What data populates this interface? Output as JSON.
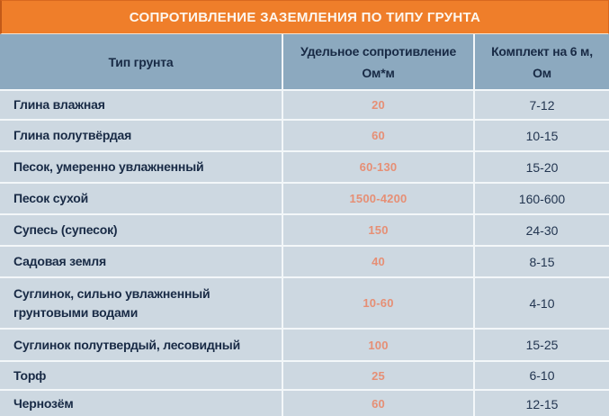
{
  "title": "СОПРОТИВЛЕНИЕ ЗАЗЕМЛЕНИЯ ПО ТИПУ ГРУНТА",
  "columns": {
    "soil": "Тип грунта",
    "resistivity_line1": "Удельное сопротивление",
    "resistivity_line2": "Ом*м",
    "kit_line1": "Комплект на 6 м,",
    "kit_line2": "Ом"
  },
  "colors": {
    "title_band": "#ef7e2a",
    "header_band": "#8ca9bf",
    "row_background": "#cdd8e1",
    "separator": "#f3f7f9",
    "heading_text": "#182a45",
    "resistivity_value_text": "#e68f75",
    "title_text": "#fdf7ef"
  },
  "chart_data": {
    "type": "table",
    "title": "СОПРОТИВЛЕНИЕ ЗАЗЕМЛЕНИЯ ПО ТИПУ ГРУНТА",
    "columns": [
      "Тип грунта",
      "Удельное сопротивление Ом*м",
      "Комплект на 6 м, Ом"
    ],
    "rows": [
      {
        "soil": "Глина влажная",
        "resistivity": "20",
        "kit": "7-12"
      },
      {
        "soil": "Глина полутвёрдая",
        "resistivity": "60",
        "kit": "10-15"
      },
      {
        "soil": "Песок, умеренно увлажненный",
        "resistivity": "60-130",
        "kit": "15-20"
      },
      {
        "soil": "Песок сухой",
        "resistivity": "1500-4200",
        "kit": "160-600"
      },
      {
        "soil": "Супесь (супесок)",
        "resistivity": "150",
        "kit": "24-30"
      },
      {
        "soil": "Садовая земля",
        "resistivity": "40",
        "kit": "8-15"
      },
      {
        "soil": "Суглинок, сильно увлажненный грунтовыми водами",
        "resistivity": "10-60",
        "kit": "4-10"
      },
      {
        "soil": "Суглинок полутвердый, лесовидный",
        "resistivity": "100",
        "kit": "15-25"
      },
      {
        "soil": "Торф",
        "resistivity": "25",
        "kit": "6-10"
      },
      {
        "soil": "Чернозём",
        "resistivity": "60",
        "kit": "12-15"
      }
    ]
  }
}
